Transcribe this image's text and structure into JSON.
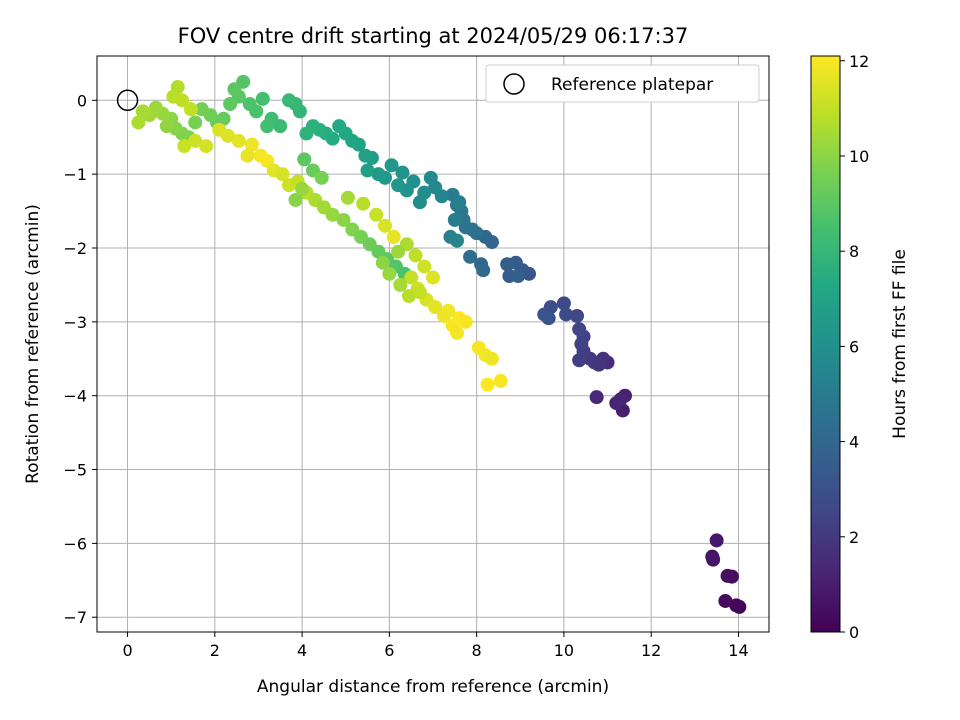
{
  "chart_data": {
    "type": "scatter",
    "title": "FOV centre drift starting at 2024/05/29 06:17:37",
    "xlabel": "Angular distance from reference (arcmin)",
    "ylabel": "Rotation from reference (arcmin)",
    "xlim": [
      -0.7,
      14.7
    ],
    "ylim": [
      -7.2,
      0.6
    ],
    "x_ticks": [
      0,
      2,
      4,
      6,
      8,
      10,
      12,
      14
    ],
    "y_ticks": [
      0,
      -1,
      -2,
      -3,
      -4,
      -5,
      -6,
      -7
    ],
    "y_tick_labels": [
      "0",
      "−1",
      "−2",
      "−3",
      "−4",
      "−5",
      "−6",
      "−7"
    ],
    "grid": true,
    "legend": {
      "location": "top-right",
      "entries": [
        "Reference platepar"
      ]
    },
    "reference_point": {
      "x": 0,
      "y": 0,
      "label": "Reference platepar"
    },
    "colorbar": {
      "label": "Hours from first FF file",
      "min": 0,
      "max": 12.1,
      "ticks": [
        0,
        2,
        4,
        6,
        8,
        10,
        12
      ],
      "colormap": "viridis"
    },
    "points": [
      [
        14.02,
        -6.86,
        0.1
      ],
      [
        13.95,
        -6.84,
        0.2
      ],
      [
        13.7,
        -6.78,
        0.3
      ],
      [
        13.85,
        -6.45,
        0.4
      ],
      [
        13.75,
        -6.44,
        0.5
      ],
      [
        13.4,
        -6.18,
        0.6
      ],
      [
        13.42,
        -6.22,
        0.7
      ],
      [
        13.5,
        -5.96,
        0.8
      ],
      [
        11.35,
        -4.2,
        1.0
      ],
      [
        11.4,
        -4.0,
        1.1
      ],
      [
        11.2,
        -4.1,
        1.2
      ],
      [
        11.3,
        -4.05,
        1.3
      ],
      [
        10.75,
        -4.02,
        1.4
      ],
      [
        11.0,
        -3.55,
        1.6
      ],
      [
        10.9,
        -3.5,
        1.7
      ],
      [
        10.8,
        -3.58,
        1.8
      ],
      [
        10.7,
        -3.55,
        1.9
      ],
      [
        10.6,
        -3.5,
        2.0
      ],
      [
        10.45,
        -3.4,
        2.1
      ],
      [
        10.35,
        -3.52,
        2.2
      ],
      [
        10.4,
        -3.3,
        2.3
      ],
      [
        10.45,
        -3.2,
        2.4
      ],
      [
        10.35,
        -3.1,
        2.5
      ],
      [
        10.3,
        -2.92,
        2.6
      ],
      [
        10.0,
        -2.75,
        2.7
      ],
      [
        10.05,
        -2.9,
        2.8
      ],
      [
        9.7,
        -2.8,
        2.9
      ],
      [
        9.65,
        -2.95,
        3.0
      ],
      [
        9.55,
        -2.9,
        3.1
      ],
      [
        9.2,
        -2.35,
        3.2
      ],
      [
        9.05,
        -2.3,
        3.3
      ],
      [
        8.9,
        -2.2,
        3.4
      ],
      [
        8.75,
        -2.38,
        3.5
      ],
      [
        8.7,
        -2.22,
        3.6
      ],
      [
        8.95,
        -2.38,
        3.7
      ],
      [
        8.35,
        -1.92,
        3.9
      ],
      [
        8.2,
        -1.85,
        4.0
      ],
      [
        8.1,
        -2.22,
        4.1
      ],
      [
        8.15,
        -2.3,
        4.2
      ],
      [
        7.85,
        -2.12,
        4.3
      ],
      [
        8.0,
        -1.8,
        4.4
      ],
      [
        7.9,
        -1.75,
        4.5
      ],
      [
        7.75,
        -1.72,
        4.6
      ],
      [
        7.7,
        -1.62,
        4.7
      ],
      [
        7.65,
        -1.5,
        4.8
      ],
      [
        7.55,
        -1.42,
        4.9
      ],
      [
        7.45,
        -1.28,
        5.0
      ],
      [
        7.6,
        -1.38,
        5.1
      ],
      [
        7.5,
        -1.62,
        5.2
      ],
      [
        7.4,
        -1.85,
        5.3
      ],
      [
        7.55,
        -1.9,
        5.4
      ],
      [
        7.2,
        -1.3,
        5.5
      ],
      [
        7.05,
        -1.18,
        5.6
      ],
      [
        6.95,
        -1.05,
        5.7
      ],
      [
        6.8,
        -1.25,
        5.8
      ],
      [
        6.7,
        -1.38,
        5.9
      ],
      [
        6.55,
        -1.1,
        6.0
      ],
      [
        6.4,
        -1.22,
        6.1
      ],
      [
        6.3,
        -0.98,
        6.2
      ],
      [
        6.2,
        -1.15,
        6.3
      ],
      [
        6.05,
        -0.88,
        6.4
      ],
      [
        5.9,
        -1.05,
        6.5
      ],
      [
        5.75,
        -1.0,
        6.6
      ],
      [
        5.6,
        -0.78,
        6.7
      ],
      [
        5.5,
        -0.95,
        6.8
      ],
      [
        5.45,
        -0.75,
        6.9
      ],
      [
        5.3,
        -0.6,
        7.0
      ],
      [
        5.15,
        -0.55,
        7.1
      ],
      [
        5.0,
        -0.45,
        7.2
      ],
      [
        4.85,
        -0.35,
        7.3
      ],
      [
        4.7,
        -0.52,
        7.4
      ],
      [
        4.55,
        -0.45,
        7.5
      ],
      [
        4.4,
        -0.4,
        7.6
      ],
      [
        4.25,
        -0.35,
        7.7
      ],
      [
        4.1,
        -0.45,
        7.8
      ],
      [
        3.95,
        -0.15,
        7.9
      ],
      [
        3.85,
        -0.05,
        8.0
      ],
      [
        3.7,
        0.0,
        8.1
      ],
      [
        3.5,
        -0.35,
        8.2
      ],
      [
        3.3,
        -0.25,
        8.3
      ],
      [
        3.2,
        -0.35,
        8.4
      ],
      [
        3.1,
        0.02,
        8.5
      ],
      [
        2.95,
        -0.15,
        8.6
      ],
      [
        2.8,
        -0.05,
        8.7
      ],
      [
        2.65,
        0.25,
        8.8
      ],
      [
        2.55,
        0.05,
        8.9
      ],
      [
        2.45,
        0.15,
        9.0
      ],
      [
        2.35,
        -0.05,
        9.1
      ],
      [
        2.2,
        -0.25,
        9.2
      ],
      [
        2.05,
        -0.3,
        9.3
      ],
      [
        1.9,
        -0.2,
        9.4
      ],
      [
        1.7,
        -0.12,
        9.5
      ],
      [
        1.55,
        -0.3,
        9.6
      ],
      [
        1.4,
        -0.5,
        9.7
      ],
      [
        1.25,
        -0.45,
        9.8
      ],
      [
        1.1,
        -0.38,
        9.9
      ],
      [
        1.0,
        -0.25,
        10.0
      ],
      [
        0.9,
        -0.35,
        10.1
      ],
      [
        0.8,
        -0.18,
        10.2
      ],
      [
        0.65,
        -0.1,
        10.3
      ],
      [
        0.5,
        -0.2,
        10.4
      ],
      [
        0.35,
        -0.15,
        10.5
      ],
      [
        0.25,
        -0.3,
        10.6
      ],
      [
        1.15,
        0.18,
        10.7
      ],
      [
        1.05,
        0.05,
        10.8
      ],
      [
        1.25,
        0.0,
        10.9
      ],
      [
        1.45,
        -0.12,
        11.0
      ],
      [
        1.3,
        -0.62,
        11.1
      ],
      [
        1.55,
        -0.55,
        11.2
      ],
      [
        1.8,
        -0.62,
        11.3
      ],
      [
        2.1,
        -0.4,
        11.4
      ],
      [
        2.3,
        -0.48,
        11.5
      ],
      [
        2.55,
        -0.55,
        11.6
      ],
      [
        2.75,
        -0.75,
        11.7
      ],
      [
        2.85,
        -0.6,
        11.8
      ],
      [
        3.05,
        -0.75,
        11.9
      ],
      [
        3.2,
        -0.82,
        12.0
      ],
      [
        3.35,
        -0.95,
        11.6
      ],
      [
        3.55,
        -1.0,
        11.4
      ],
      [
        3.7,
        -1.15,
        11.2
      ],
      [
        3.9,
        -1.1,
        11.0
      ],
      [
        4.1,
        -1.25,
        10.8
      ],
      [
        4.3,
        -1.35,
        10.6
      ],
      [
        4.5,
        -1.45,
        10.4
      ],
      [
        4.7,
        -1.55,
        10.2
      ],
      [
        4.95,
        -1.62,
        10.0
      ],
      [
        5.15,
        -1.75,
        9.8
      ],
      [
        5.35,
        -1.85,
        9.6
      ],
      [
        5.55,
        -1.95,
        9.4
      ],
      [
        5.75,
        -2.05,
        9.2
      ],
      [
        5.95,
        -2.15,
        9.0
      ],
      [
        6.15,
        -2.25,
        8.8
      ],
      [
        6.35,
        -2.35,
        8.6
      ],
      [
        4.05,
        -0.8,
        9.0
      ],
      [
        4.25,
        -0.95,
        9.3
      ],
      [
        4.45,
        -1.05,
        9.6
      ],
      [
        3.85,
        -1.35,
        9.9
      ],
      [
        4.0,
        -1.2,
        10.2
      ],
      [
        5.05,
        -1.32,
        10.5
      ],
      [
        5.4,
        -1.4,
        10.8
      ],
      [
        5.7,
        -1.55,
        11.1
      ],
      [
        5.9,
        -1.7,
        11.4
      ],
      [
        6.1,
        -1.85,
        11.7
      ],
      [
        6.5,
        -2.4,
        11.0
      ],
      [
        6.65,
        -2.55,
        11.2
      ],
      [
        6.85,
        -2.7,
        11.4
      ],
      [
        7.05,
        -2.8,
        11.6
      ],
      [
        7.25,
        -2.92,
        11.8
      ],
      [
        7.45,
        -3.05,
        12.0
      ],
      [
        7.6,
        -2.95,
        12.1
      ],
      [
        7.75,
        -3.0,
        12.0
      ],
      [
        7.55,
        -3.15,
        11.9
      ],
      [
        7.35,
        -2.85,
        11.8
      ],
      [
        8.05,
        -3.35,
        12.0
      ],
      [
        8.2,
        -3.45,
        11.9
      ],
      [
        8.35,
        -3.5,
        11.8
      ],
      [
        8.25,
        -3.85,
        12.1
      ],
      [
        8.55,
        -3.8,
        12.0
      ],
      [
        6.4,
        -1.95,
        10.6
      ],
      [
        6.6,
        -2.1,
        10.9
      ],
      [
        6.8,
        -2.25,
        11.2
      ],
      [
        7.0,
        -2.4,
        11.5
      ],
      [
        6.2,
        -2.05,
        10.3
      ],
      [
        5.85,
        -2.2,
        10.0
      ],
      [
        6.0,
        -2.35,
        10.2
      ],
      [
        6.25,
        -2.5,
        10.5
      ],
      [
        6.45,
        -2.65,
        10.8
      ],
      [
        6.7,
        -2.6,
        11.0
      ]
    ]
  }
}
